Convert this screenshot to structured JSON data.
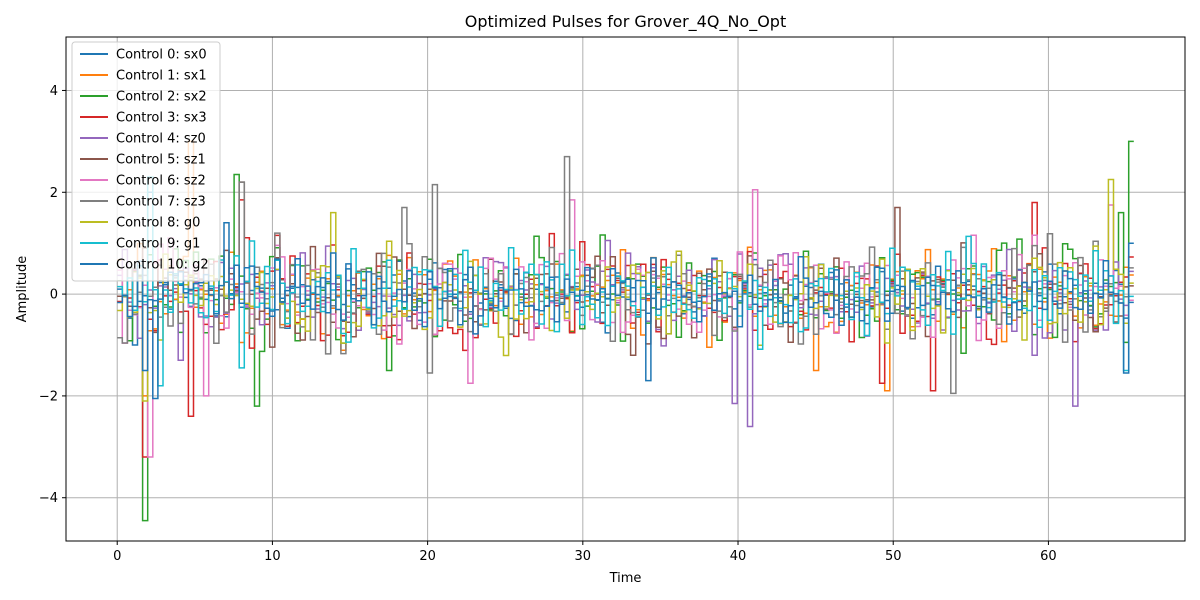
{
  "chart_data": {
    "type": "line",
    "title": "Optimized Pulses for Grover_4Q_No_Opt",
    "xlabel": "Time",
    "ylabel": "Amplitude",
    "xlim": [
      -3.3,
      68.8
    ],
    "ylim": [
      -4.85,
      5.05
    ],
    "xticks": [
      0,
      10,
      20,
      30,
      40,
      50,
      60
    ],
    "yticks": [
      -4,
      -2,
      0,
      2,
      4
    ],
    "xtick_labels": [
      "0",
      "10",
      "20",
      "30",
      "40",
      "50",
      "60"
    ],
    "ytick_labels": [
      "−4",
      "−2",
      "0",
      "2",
      "4"
    ],
    "grid": true,
    "legend_position": "top-left",
    "x_end": 65.5,
    "steps": 200,
    "series": [
      {
        "name": "Control 0: sx0",
        "color": "#1f77b4",
        "amp": 0.5,
        "peaks": [
          [
            1.0,
            -1.0
          ],
          [
            2.0,
            2.0
          ]
        ]
      },
      {
        "name": "Control 1: sx1",
        "color": "#ff7f0e",
        "amp": 0.8,
        "peaks": [
          [
            4.5,
            3.0
          ],
          [
            1.5,
            -2.0
          ],
          [
            49.5,
            -1.9
          ],
          [
            45.0,
            -1.5
          ]
        ]
      },
      {
        "name": "Control 2: sx2",
        "color": "#2ca02c",
        "amp": 0.8,
        "peaks": [
          [
            1.8,
            -4.45
          ],
          [
            7.5,
            2.35
          ],
          [
            9.0,
            -2.2
          ],
          [
            65.5,
            3.0
          ],
          [
            64.5,
            1.6
          ],
          [
            17.5,
            -1.5
          ]
        ]
      },
      {
        "name": "Control 3: sx3",
        "color": "#d62728",
        "amp": 0.8,
        "peaks": [
          [
            1.7,
            4.5
          ],
          [
            1.6,
            -3.2
          ],
          [
            4.7,
            -2.4
          ],
          [
            7.8,
            1.85
          ],
          [
            59.0,
            1.8
          ],
          [
            49.0,
            -1.75
          ],
          [
            52.5,
            -1.9
          ]
        ]
      },
      {
        "name": "Control 4: sz0",
        "color": "#9467bd",
        "amp": 0.8,
        "peaks": [
          [
            40.5,
            -2.6
          ],
          [
            39.5,
            -2.15
          ],
          [
            61.5,
            -2.2
          ],
          [
            3.8,
            -1.3
          ]
        ]
      },
      {
        "name": "Control 5: sz1",
        "color": "#8c564b",
        "amp": 0.8,
        "peaks": [
          [
            8.0,
            2.2
          ],
          [
            50.0,
            1.7
          ],
          [
            33.0,
            -1.2
          ]
        ]
      },
      {
        "name": "Control 6: sz2",
        "color": "#e377c2",
        "amp": 0.8,
        "peaks": [
          [
            1.9,
            -3.2
          ],
          [
            40.8,
            2.05
          ],
          [
            64.0,
            1.75
          ],
          [
            29.0,
            1.85
          ],
          [
            5.5,
            -2.0
          ],
          [
            22.5,
            -1.75
          ]
        ]
      },
      {
        "name": "Control 7: sz3",
        "color": "#7f7f7f",
        "amp": 0.8,
        "peaks": [
          [
            28.8,
            2.7
          ],
          [
            20.3,
            2.15
          ],
          [
            8.0,
            2.2
          ],
          [
            53.8,
            -1.95
          ],
          [
            18.5,
            1.7
          ],
          [
            20.0,
            -1.55
          ]
        ]
      },
      {
        "name": "Control 8: g0",
        "color": "#bcbd22",
        "amp": 0.75,
        "peaks": [
          [
            63.8,
            2.25
          ],
          [
            1.5,
            -2.1
          ],
          [
            13.8,
            1.6
          ]
        ]
      },
      {
        "name": "Control 9: g1",
        "color": "#17becf",
        "amp": 0.7,
        "peaks": [
          [
            1.9,
            2.3
          ],
          [
            2.5,
            -1.8
          ],
          [
            7.8,
            -1.45
          ],
          [
            64.8,
            -1.5
          ]
        ]
      },
      {
        "name": "Control 10: g2",
        "color": "#1f77b4",
        "amp": 0.55,
        "peaks": [
          [
            2.4,
            -2.05
          ],
          [
            1.6,
            -1.5
          ],
          [
            6.8,
            1.4
          ],
          [
            34.0,
            -1.7
          ],
          [
            65.0,
            -1.55
          ],
          [
            65.5,
            1.0
          ]
        ]
      }
    ]
  }
}
